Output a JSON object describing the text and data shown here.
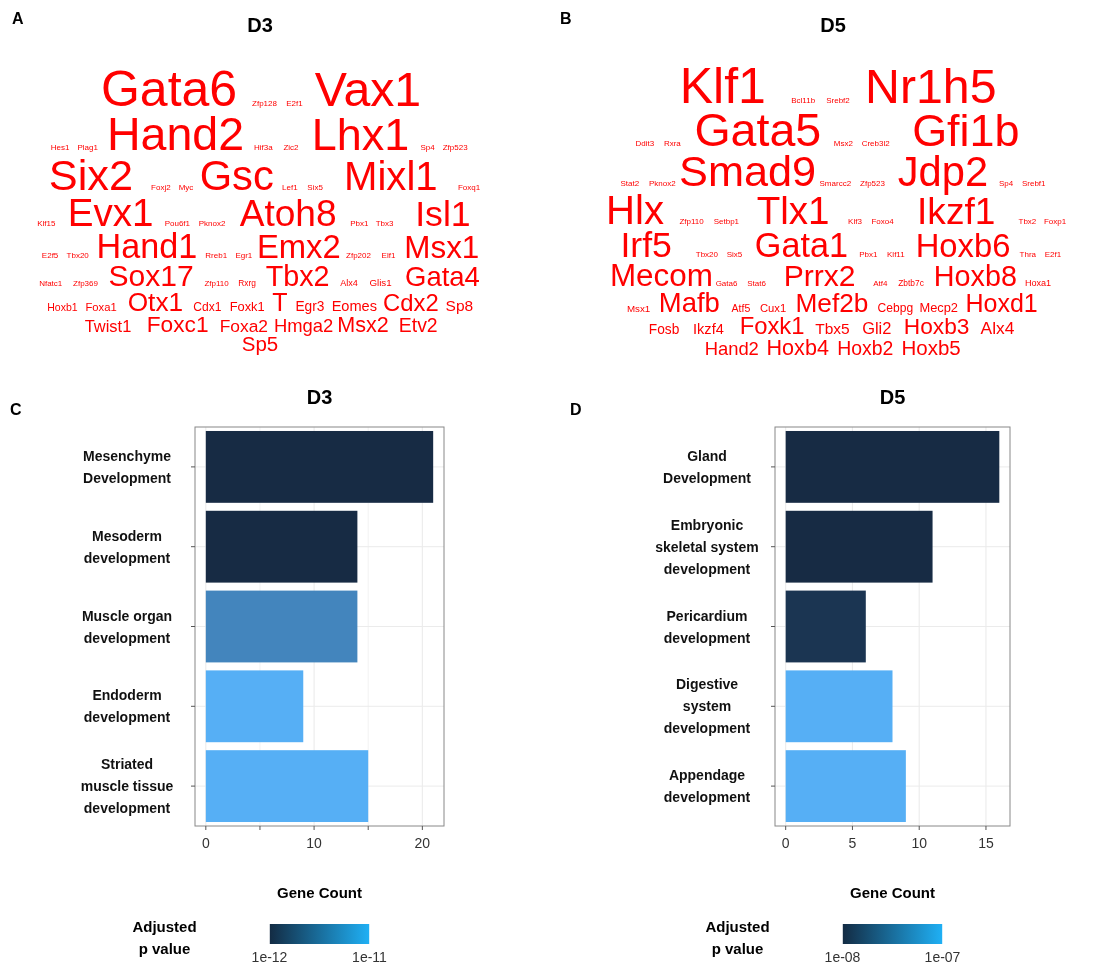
{
  "chart_data": [
    {
      "type": "other",
      "title": "D3",
      "color": "#ff0000",
      "annotations": [
        "A",
        "Gata6",
        "Vax1",
        "Hand2",
        "Lhx1",
        "Six2",
        "Gsc",
        "Mixl1",
        "Evx1",
        "Atoh8",
        "Isl1",
        "Hand1",
        "Emx2",
        "Msx1",
        "Sox17",
        "Tbx2",
        "Gata4",
        "Otx1",
        "T",
        "Cdx2",
        "Foxc1",
        "Msx2",
        "Sp5",
        "Etv2",
        "Hmga2",
        "Foxa2",
        "Twist1",
        "Sp8",
        "Eomes",
        "Egr3",
        "Foxk1",
        "Cdx1",
        "Foxa1",
        "Hoxb1",
        "Glis1",
        "Alx4",
        "Rxrg",
        "Zfp110",
        "Zfp369",
        "Nfatc1",
        "Elf1",
        "Zfp202",
        "Egr1",
        "Rreb1",
        "Tbx20",
        "E2f5",
        "Tbx3",
        "Pbx1",
        "Pknox2",
        "Pou6f1",
        "Klf15",
        "Foxq1",
        "Six5",
        "Lef1",
        "Myc",
        "Foxj2",
        "Zfp523",
        "Sp4",
        "Zic2",
        "Hif3a",
        "Plag1",
        "Hes1",
        "E2f1",
        "Zfp128"
      ]
    },
    {
      "type": "other",
      "title": "D5",
      "color": "#ff0000",
      "annotations": [
        "B",
        "Klf1",
        "Nr1h5",
        "Gata5",
        "Gfi1b",
        "Smad9",
        "Jdp2",
        "Hlx",
        "Tlx1",
        "Ikzf1",
        "Irf5",
        "Gata1",
        "Hoxb6",
        "Mecom",
        "Prrx2",
        "Hoxb8",
        "Mafb",
        "Mef2b",
        "Hoxd1",
        "Foxk1",
        "Hoxb3",
        "Hoxb4",
        "Hoxb5",
        "Hoxb2",
        "Hand2",
        "Alx4",
        "Gli2",
        "Tbx5",
        "Ikzf4",
        "Fosb",
        "Mecp2",
        "Cebpg",
        "Cux1",
        "Atf5",
        "Msx1",
        "Hoxa1",
        "Zbtb7c",
        "Atf4",
        "Stat6",
        "Gata6",
        "E2f1",
        "Thra",
        "Klf11",
        "Pbx1",
        "Six5",
        "Tbx20",
        "Foxp1",
        "Tbx2",
        "Foxo4",
        "Klf3",
        "Setbp1",
        "Zfp110",
        "Srebf1",
        "Sp4",
        "Zfp523",
        "Smarcc2",
        "Pknox2",
        "Stat2",
        "Creb3l2",
        "Msx2",
        "Rxra",
        "Ddit3",
        "Srebf2",
        "Bcl11b"
      ]
    },
    {
      "type": "bar",
      "orientation": "horizontal",
      "title": "D3",
      "xlabel": "Gene Count",
      "clabel": "Adjusted\np value",
      "annotations": [
        "C"
      ],
      "categories": [
        "Mesenchyme\nDevelopment",
        "Mesoderm\ndevelopment",
        "Muscle organ\ndevelopment",
        "Endoderm\ndevelopment",
        "Striated\nmuscle tissue\ndevelopment"
      ],
      "values": [
        21,
        14,
        14,
        9,
        15
      ],
      "colors": [
        "#172b44",
        "#172b44",
        "#4385bd",
        "#56aff5",
        "#56aff5"
      ],
      "xlim": [
        -1,
        22
      ],
      "xticks": [
        0,
        {
          "value": 5,
          "label": null
        },
        10,
        {
          "value": 15,
          "label": null
        },
        20
      ],
      "clim": [
        1e-12,
        1e-11
      ],
      "cticks": [
        {
          "value": 1e-12,
          "label": "1e-12"
        },
        {
          "value": 1e-11,
          "label": "1e-11"
        }
      ],
      "grid": true
    },
    {
      "type": "bar",
      "orientation": "horizontal",
      "title": "D5",
      "xlabel": "Gene Count",
      "clabel": "Adjusted\np value",
      "annotations": [
        "D"
      ],
      "categories": [
        "Gland\nDevelopment",
        "Embryonic\nskeletal system\ndevelopment",
        "Pericardium\ndevelopment",
        "Digestive\nsystem\ndevelopment",
        "Appendage\ndevelopment"
      ],
      "values": [
        16,
        11,
        6,
        8,
        9
      ],
      "colors": [
        "#172b44",
        "#172b44",
        "#1b3552",
        "#56aff5",
        "#56aff5"
      ],
      "xlim": [
        -0.8,
        16.8
      ],
      "xticks": [
        0,
        5,
        10,
        15
      ],
      "clim": [
        1e-08,
        1e-07
      ],
      "cticks": [
        {
          "value": 1e-08,
          "label": "1e-08"
        },
        {
          "value": 1e-07,
          "label": "1e-07"
        }
      ],
      "grid": true
    }
  ]
}
